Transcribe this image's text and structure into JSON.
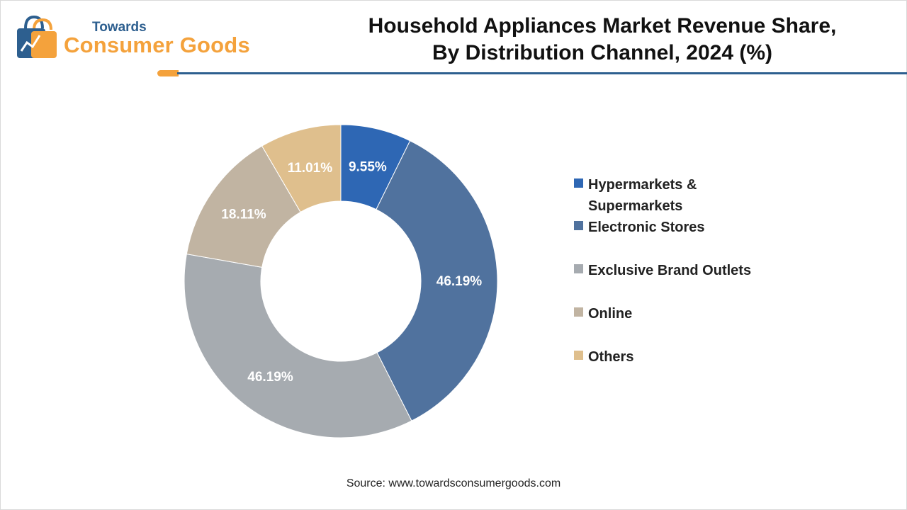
{
  "brand": {
    "line1": "Towards",
    "line2": "Consumer Goods",
    "icon": "shopping-bag-logo-icon",
    "colors": {
      "blue": "#2d5f8f",
      "orange": "#f4a23c"
    }
  },
  "title": {
    "line1": "Household Appliances Market Revenue Share,",
    "line2": "By Distribution Channel, 2024 (%)"
  },
  "source": "Source: www.towardsconsumergoods.com",
  "chart_data": {
    "type": "pie",
    "donut": true,
    "title": "Household Appliances Market Revenue Share, By Distribution Channel, 2024 (%)",
    "categories": [
      "Hypermarkets & Supermarkets",
      "Electronic Stores",
      "Exclusive Brand Outlets",
      "Online",
      "Others"
    ],
    "values": [
      9.55,
      46.19,
      46.19,
      18.11,
      11.01
    ],
    "data_labels": [
      "9.55%",
      "46.19%",
      "46.19%",
      "18.11%",
      "11.01%"
    ],
    "colors": [
      "#2e67b4",
      "#50729e",
      "#a6abb0",
      "#c1b4a2",
      "#dfbf8d"
    ],
    "legend_position": "right"
  }
}
